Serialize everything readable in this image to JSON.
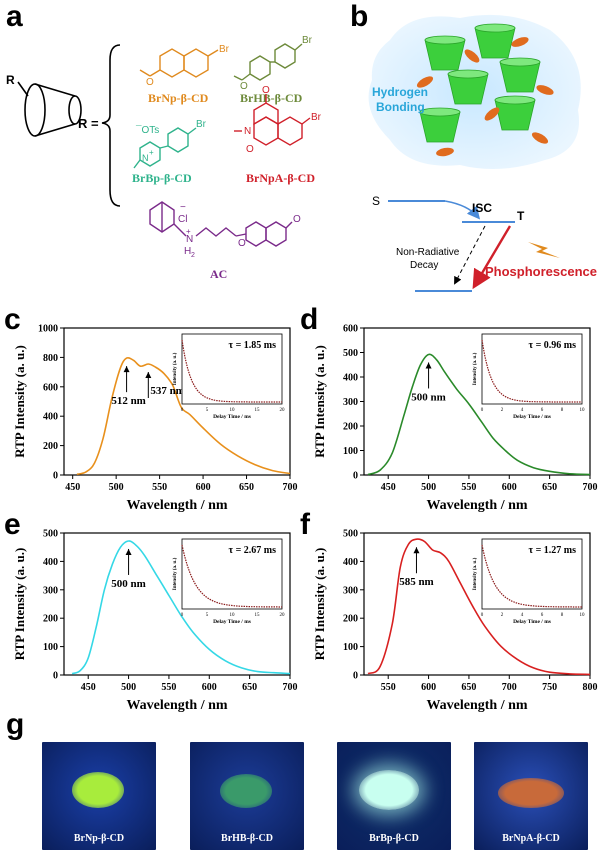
{
  "panels": {
    "a": "a",
    "b": "b",
    "c": "c",
    "d": "d",
    "e": "e",
    "f": "f",
    "g": "g"
  },
  "panel_a": {
    "r_label": "R",
    "r_equals": "R =",
    "substituents": [
      {
        "name": "BrNp-β-CD",
        "color": "#e08a1e"
      },
      {
        "name": "BrHB-β-CD",
        "color": "#6d8a3a"
      },
      {
        "name": "BrBp-β-CD",
        "color": "#2fb38c"
      },
      {
        "name": "BrNpA-β-CD",
        "color": "#d0202a"
      }
    ],
    "atoms": {
      "br": "Br",
      "o": "O",
      "ots": "¯OTs",
      "nplus": "N",
      "plus": "+",
      "n": "N",
      "cl": "Cl",
      "minus": "−",
      "h2": "H",
      "h2sub": "2"
    },
    "ac_label": "AC",
    "ac_color": "#7a2a8a"
  },
  "panel_b": {
    "hydrogen_bonding_1": "Hydrogen",
    "hydrogen_bonding_2": "Bonding",
    "s_label": "S",
    "isc_label": "ISC",
    "t_label": "T",
    "nonrad_1": "Non-Radiative",
    "nonrad_2": "Decay",
    "phosphorescence": "Phosphorescence",
    "colors": {
      "cup": "#3ccf3c",
      "disc": "#e06b1e",
      "hb_text": "#29a6d9",
      "level": "#4a8ad8",
      "phos": "#d0202a"
    }
  },
  "chart_data": [
    {
      "panel": "c",
      "type": "line",
      "color": "#e8901c",
      "xlabel": "Wavelength / nm",
      "ylabel": "RTP Intensity (a. u.)",
      "xlim": [
        440,
        700
      ],
      "ylim": [
        0,
        1000
      ],
      "xticks": [
        450,
        500,
        550,
        600,
        650,
        700
      ],
      "yticks": [
        0,
        200,
        400,
        600,
        800,
        1000
      ],
      "x": [
        455,
        465,
        475,
        485,
        495,
        505,
        512,
        520,
        528,
        537,
        545,
        555,
        565,
        575,
        585,
        600,
        620,
        640,
        660,
        680,
        700
      ],
      "y": [
        5,
        20,
        80,
        250,
        520,
        730,
        795,
        780,
        740,
        755,
        735,
        690,
        610,
        460,
        410,
        320,
        210,
        130,
        70,
        30,
        10
      ],
      "peaks": [
        {
          "label": "512 nm",
          "x": 512
        },
        {
          "label": "537 nm",
          "x": 537
        }
      ],
      "inset": {
        "tau": "τ = 1.85 ms",
        "xlabel": "Delay Time / ms",
        "ylabel": "Intensity (a. u.)",
        "xticks": [
          0,
          5,
          10,
          15,
          20
        ],
        "xmax": 20,
        "tau_value": 1.85
      }
    },
    {
      "panel": "d",
      "type": "line",
      "color": "#2a8a2a",
      "xlabel": "Wavelength / nm",
      "ylabel": "RTP Intensity (a. u.)",
      "xlim": [
        420,
        700
      ],
      "ylim": [
        0,
        600
      ],
      "xticks": [
        450,
        500,
        550,
        600,
        650,
        700
      ],
      "yticks": [
        0,
        100,
        200,
        300,
        400,
        500,
        600
      ],
      "x": [
        425,
        440,
        455,
        470,
        480,
        490,
        500,
        510,
        520,
        535,
        550,
        565,
        580,
        595,
        610,
        630,
        650,
        675,
        700
      ],
      "y": [
        2,
        20,
        90,
        250,
        360,
        450,
        492,
        470,
        420,
        350,
        290,
        220,
        150,
        100,
        60,
        30,
        15,
        5,
        2
      ],
      "peaks": [
        {
          "label": "500 nm",
          "x": 500
        }
      ],
      "inset": {
        "tau": "τ = 0.96 ms",
        "xlabel": "Delay Time / ms",
        "ylabel": "Intensity (a. u.)",
        "xticks": [
          0,
          2,
          4,
          6,
          8,
          10
        ],
        "xmax": 10,
        "tau_value": 0.96
      }
    },
    {
      "panel": "e",
      "type": "line",
      "color": "#35d8e6",
      "xlabel": "Wavelength / nm",
      "ylabel": "RTP Intensity (a. u.)",
      "xlim": [
        420,
        700
      ],
      "ylim": [
        0,
        500
      ],
      "xticks": [
        450,
        500,
        550,
        600,
        650,
        700
      ],
      "yticks": [
        0,
        100,
        200,
        300,
        400,
        500
      ],
      "x": [
        430,
        440,
        450,
        460,
        470,
        480,
        490,
        500,
        510,
        520,
        535,
        550,
        565,
        580,
        600,
        620,
        640,
        660,
        680,
        700
      ],
      "y": [
        5,
        15,
        60,
        170,
        300,
        390,
        450,
        472,
        455,
        420,
        350,
        280,
        210,
        150,
        90,
        50,
        25,
        12,
        8,
        5
      ],
      "peaks": [
        {
          "label": "500 nm",
          "x": 500
        }
      ],
      "inset": {
        "tau": "τ = 2.67 ms",
        "xlabel": "Delay Time / ms",
        "ylabel": "Intensity (a. u.)",
        "xticks": [
          0,
          5,
          10,
          15,
          20
        ],
        "xmax": 20,
        "tau_value": 2.67
      }
    },
    {
      "panel": "f",
      "type": "line",
      "color": "#d82020",
      "xlabel": "Wavelength / nm",
      "ylabel": "RTP Intensity (a. u.)",
      "xlim": [
        520,
        800
      ],
      "ylim": [
        0,
        500
      ],
      "xticks": [
        550,
        600,
        650,
        700,
        750,
        800
      ],
      "yticks": [
        0,
        100,
        200,
        300,
        400,
        500
      ],
      "x": [
        525,
        540,
        555,
        565,
        575,
        585,
        595,
        605,
        615,
        625,
        640,
        655,
        670,
        690,
        710,
        730,
        750,
        775,
        800
      ],
      "y": [
        5,
        30,
        180,
        380,
        460,
        478,
        470,
        440,
        430,
        400,
        320,
        240,
        170,
        100,
        55,
        25,
        10,
        4,
        2
      ],
      "peaks": [
        {
          "label": "585 nm",
          "x": 585
        }
      ],
      "inset": {
        "tau": "τ = 1.27 ms",
        "xlabel": "Delay Time / ms",
        "ylabel": "Intensity (a. u.)",
        "xticks": [
          0,
          2,
          4,
          6,
          8,
          10
        ],
        "xmax": 10,
        "tau_value": 1.27
      }
    }
  ],
  "panel_g": {
    "photos": [
      {
        "label": "BrNp-β-CD",
        "powder": "#a8ec3c"
      },
      {
        "label": "BrHB-β-CD",
        "powder": "#3a9a6a"
      },
      {
        "label": "BrBp-β-CD",
        "powder": "#c8fff0"
      },
      {
        "label": "BrNpA-β-CD",
        "powder": "#c86a3a"
      }
    ]
  }
}
